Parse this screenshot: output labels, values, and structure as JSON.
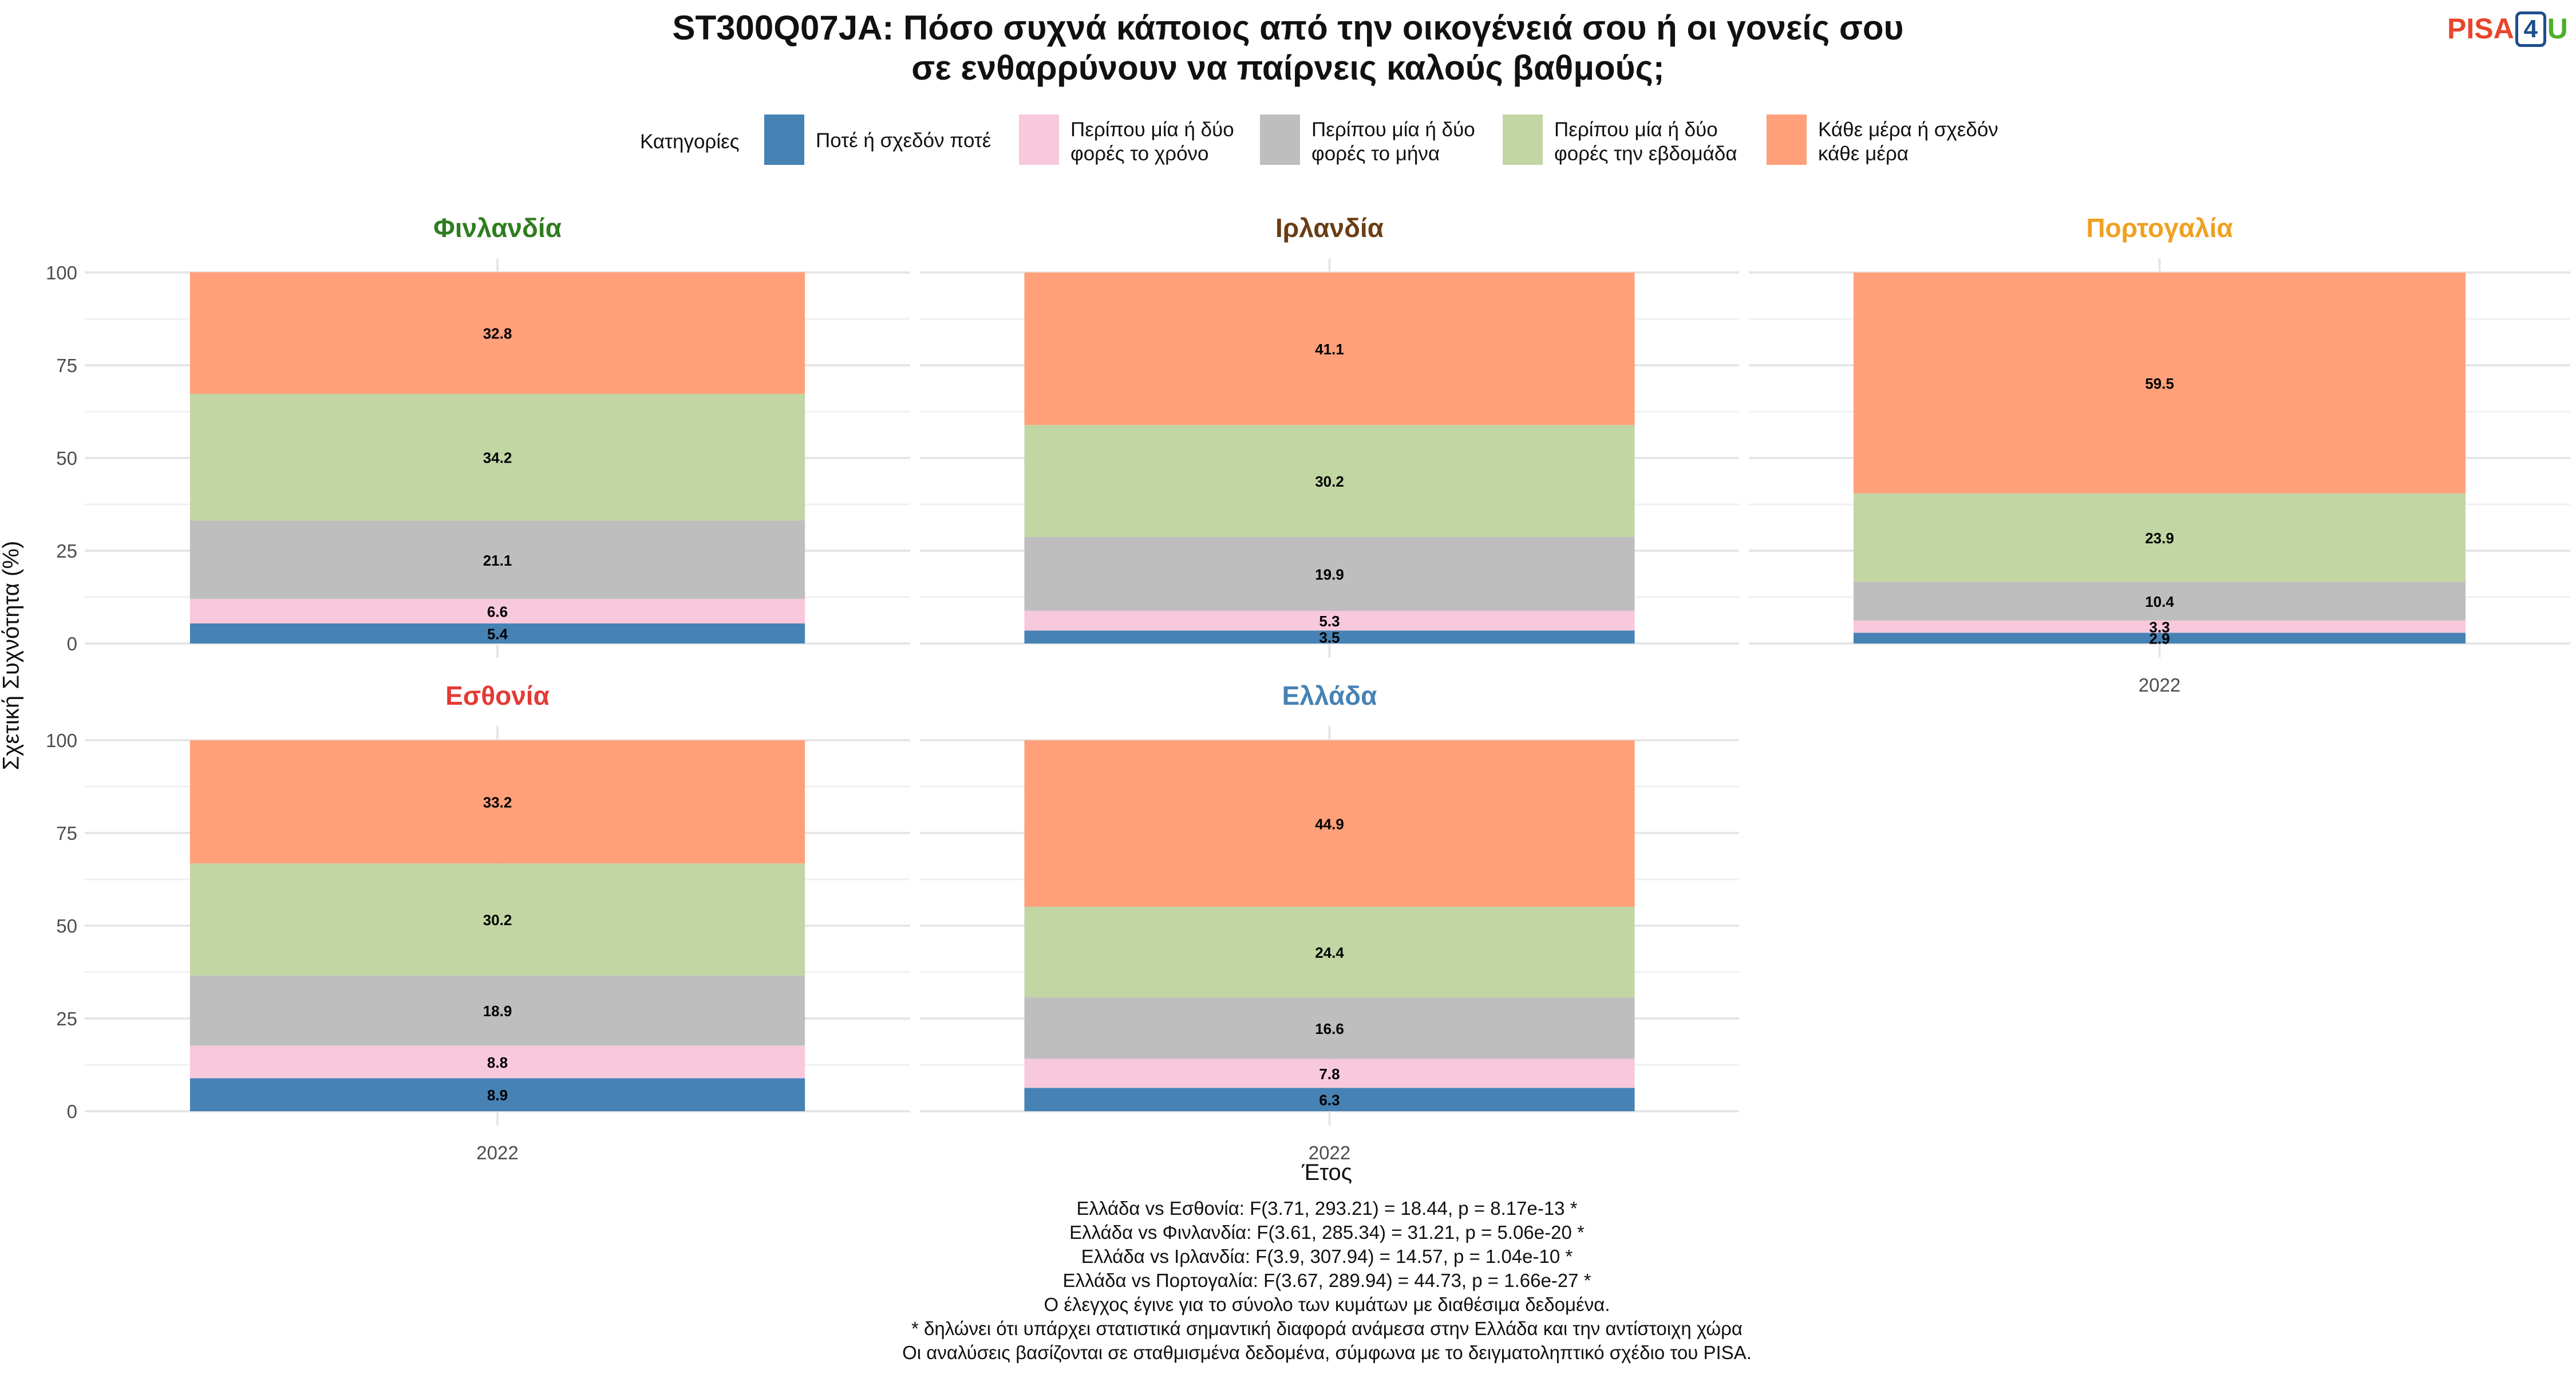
{
  "title_lines": [
    "ST300Q07JA: Πόσο συχνά κάποιος από την οικογένειά σου ή οι γονείς σου",
    "σε ενθαρρύνουν να παίρνεις καλούς βαθμούς;"
  ],
  "logo": {
    "pisa": "PISA",
    "four": "4",
    "u": "U"
  },
  "legend": {
    "title": "Κατηγορίες",
    "items": [
      {
        "label": "Ποτέ ή σχεδόν ποτέ",
        "color": "#4682b4"
      },
      {
        "label": "Περίπου μία ή δύο\nφορές το χρόνο",
        "color": "#f8c8dc"
      },
      {
        "label": "Περίπου μία ή δύο\nφορές το μήνα",
        "color": "#bebebe"
      },
      {
        "label": "Περίπου μία ή δύο\nφορές την εβδομάδα",
        "color": "#c2d6a4"
      },
      {
        "label": "Κάθε μέρα ή σχεδόν\nκάθε μέρα",
        "color": "#ffa07a"
      }
    ]
  },
  "chart_data": {
    "type": "bar",
    "stacked": true,
    "facet_wrap": true,
    "xlabel": "Έτος",
    "ylabel": "Σχετική Συχνότητα (%)",
    "ylim": [
      0,
      100
    ],
    "yticks": [
      0,
      25,
      50,
      75,
      100
    ],
    "categories": [
      "2022"
    ],
    "series_names": [
      "Ποτέ ή σχεδόν ποτέ",
      "Περίπου μία ή δύο φορές το χρόνο",
      "Περίπου μία ή δύο φορές το μήνα",
      "Περίπου μία ή δύο φορές την εβδομάδα",
      "Κάθε μέρα ή σχεδόν κάθε μέρα"
    ],
    "facets": [
      {
        "name": "Φινλανδία",
        "color": "#2e7d1f",
        "values": [
          5.4,
          6.6,
          21.1,
          34.2,
          32.8
        ]
      },
      {
        "name": "Ιρλανδία",
        "color": "#6b3d14",
        "values": [
          3.5,
          5.3,
          19.9,
          30.2,
          41.1
        ]
      },
      {
        "name": "Πορτογαλία",
        "color": "#f0a020",
        "values": [
          2.9,
          3.3,
          10.4,
          23.9,
          59.5
        ]
      },
      {
        "name": "Εσθονία",
        "color": "#e53935",
        "values": [
          8.9,
          8.8,
          18.9,
          30.2,
          33.2
        ]
      },
      {
        "name": "Ελλάδα",
        "color": "#4682b4",
        "values": [
          6.3,
          7.8,
          16.6,
          24.4,
          44.9
        ]
      }
    ]
  },
  "caption_lines": [
    "Ελλάδα vs Εσθονία: F(3.71, 293.21) = 18.44, p = 8.17e-13 *",
    "Ελλάδα vs Φινλανδία: F(3.61, 285.34) = 31.21, p = 5.06e-20 *",
    "Ελλάδα vs Ιρλανδία: F(3.9, 307.94) = 14.57, p = 1.04e-10 *",
    "Ελλάδα vs Πορτογαλία: F(3.67, 289.94) = 44.73, p = 1.66e-27 *",
    "Ο έλεγχος έγινε για το σύνολο των κυμάτων με διαθέσιμα δεδομένα.",
    "* δηλώνει ότι υπάρχει στατιστικά σημαντική διαφορά ανάμεσα στην Ελλάδα και την αντίστοιχη χώρα",
    "Οι αναλύσεις βασίζονται σε σταθμισμένα δεδομένα, σύμφωνα με το δειγματοληπτικό σχέδιο του PISA."
  ]
}
